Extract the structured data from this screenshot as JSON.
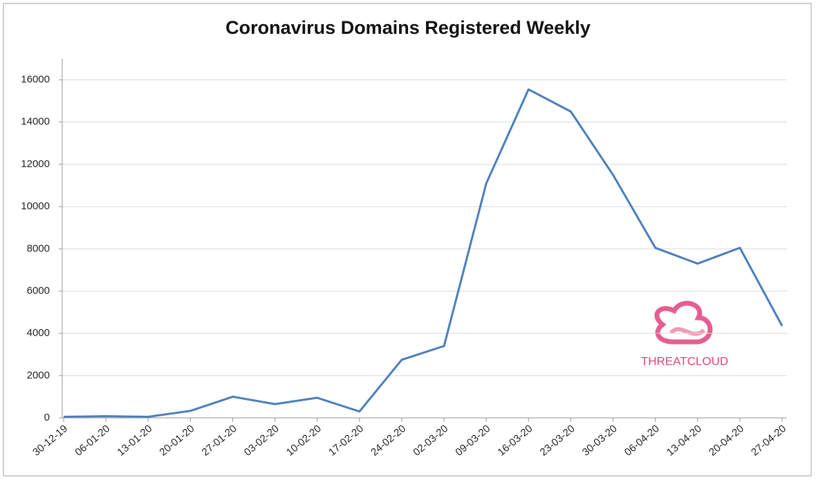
{
  "chart_data": {
    "type": "line",
    "title": "Coronavirus Domains Registered Weekly",
    "categories": [
      "30-12-19",
      "06-01-20",
      "13-01-20",
      "20-01-20",
      "27-01-20",
      "03-02-20",
      "10-02-20",
      "17-02-20",
      "24-02-20",
      "02-03-20",
      "09-03-20",
      "16-03-20",
      "23-03-20",
      "30-03-20",
      "06-04-20",
      "13-04-20",
      "20-04-20",
      "27-04-20"
    ],
    "values": [
      50,
      80,
      50,
      330,
      1000,
      650,
      950,
      300,
      2750,
      3400,
      11100,
      15550,
      14500,
      11500,
      8050,
      7300,
      8050,
      4350
    ],
    "color": "#4a7ebb",
    "ylim": [
      0,
      17000
    ],
    "yticks": [
      0,
      2000,
      4000,
      6000,
      8000,
      10000,
      12000,
      14000,
      16000
    ],
    "grid": true,
    "watermark": "THREATCLOUD"
  }
}
